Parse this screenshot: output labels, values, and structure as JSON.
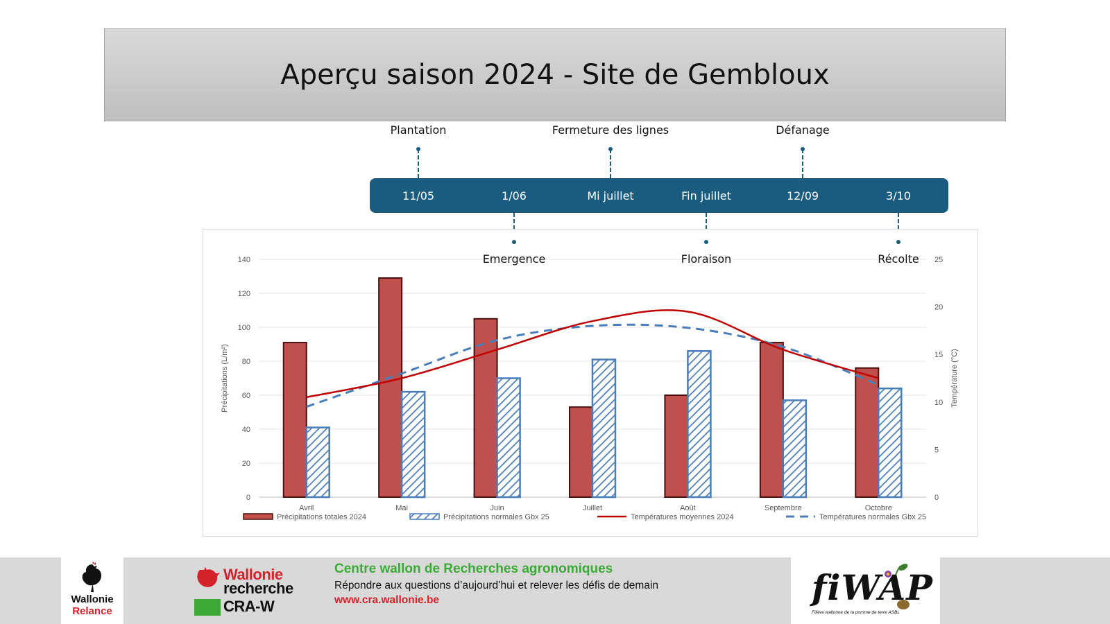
{
  "title": "Aperçu saison 2024 - Site de Gembloux",
  "timeline": {
    "above": [
      {
        "label": "Plantation",
        "date_ref": "11/05"
      },
      {
        "label": "Fermeture des lignes",
        "date_ref": "Mi juillet"
      },
      {
        "label": "Défanage",
        "date_ref": "12/09"
      }
    ],
    "below": [
      {
        "label": "Emergence",
        "date_ref": "1/06"
      },
      {
        "label": "Floraison",
        "date_ref": "Fin juillet"
      },
      {
        "label": "Récolte",
        "date_ref": "3/10"
      }
    ],
    "dates": [
      "11/05",
      "1/06",
      "Mi juillet",
      "Fin juillet",
      "12/09",
      "3/10"
    ],
    "color": "#1a5c80"
  },
  "chart_data": {
    "type": "bar",
    "categories": [
      "Avril",
      "Mai",
      "Juin",
      "Juillet",
      "Août",
      "Septembre",
      "Octobre"
    ],
    "series": [
      {
        "name": "Précipitations totales 2024",
        "type": "bar",
        "axis": "left",
        "values": [
          91,
          129,
          105,
          53,
          60,
          91,
          76
        ],
        "color": "#c0504d"
      },
      {
        "name": "Précipitations normales Gbx 25",
        "type": "bar-hatched",
        "axis": "left",
        "values": [
          41,
          62,
          70,
          81,
          86,
          57,
          64
        ],
        "color": "#4a7ebb"
      },
      {
        "name": "Températures moyennes 2024",
        "type": "line",
        "axis": "right",
        "values": [
          10.5,
          12.5,
          15.5,
          18.5,
          19.5,
          15.5,
          12.5
        ],
        "color": "#c00000"
      },
      {
        "name": "Températures normales Gbx 25",
        "type": "line-dashed",
        "axis": "right",
        "values": [
          9.5,
          13.0,
          16.5,
          18.0,
          17.8,
          15.8,
          11.8
        ],
        "color": "#4a7ebb"
      }
    ],
    "ylabel": "Précipitations (L/m²)",
    "ylabel_right": "Température (°C)",
    "ylim": [
      0,
      140
    ],
    "yticks": [
      0,
      20,
      40,
      60,
      80,
      100,
      120,
      140
    ],
    "ylim_right": [
      0,
      25
    ],
    "yticks_right": [
      0,
      5,
      10,
      15,
      20,
      25
    ],
    "grid": true,
    "legend_position": "bottom"
  },
  "footer": {
    "wallonie_relance": [
      "Wallonie",
      "Relance"
    ],
    "cra_logo": [
      "Wallonie",
      "recherche",
      "CRA-W"
    ],
    "org_name": "Centre wallon de Recherches agronomiques",
    "tagline": "Répondre aux questions d’aujourd’hui et relever les défis de demain",
    "url": "www.cra.wallonie.be",
    "fiwap": "fiWAP",
    "fiwap_sub": "Filière wallonne de la pomme de terre ASBL"
  }
}
